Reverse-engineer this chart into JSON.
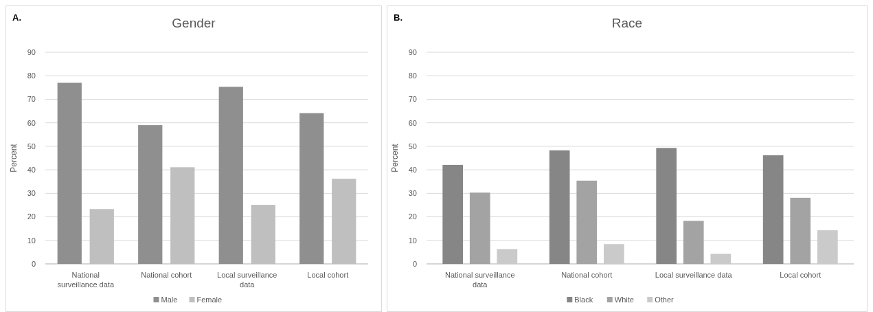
{
  "chart_data": [
    {
      "type": "bar",
      "title": "Gender",
      "ylabel": "Percent",
      "annotations": [
        "A."
      ],
      "categories": [
        "National surveillance data",
        "National cohort",
        "Local surveillance data",
        "Local cohort"
      ],
      "series": [
        {
          "name": "Male",
          "color": "#8f8f8f",
          "values": [
            77,
            59,
            75.3,
            64.1
          ]
        },
        {
          "name": "Female",
          "color": "#bfbfbf",
          "values": [
            23.3,
            41.1,
            25.1,
            36.2
          ]
        }
      ],
      "ylim": [
        0,
        90
      ],
      "yticks": [
        0,
        10,
        20,
        30,
        40,
        50,
        60,
        70,
        80,
        90
      ],
      "grid": "y",
      "legend": "bottom"
    },
    {
      "type": "bar",
      "title": "Race",
      "ylabel": "Percent",
      "annotations": [
        "B."
      ],
      "categories": [
        "National surveillance data",
        "National cohort",
        "Local surveillance data",
        "Local cohort"
      ],
      "series": [
        {
          "name": "Black",
          "color": "#868686",
          "values": [
            42.1,
            48.3,
            49.3,
            46.2
          ]
        },
        {
          "name": "White",
          "color": "#a3a3a3",
          "values": [
            30.3,
            35.4,
            18.3,
            28.1
          ]
        },
        {
          "name": "Other",
          "color": "#cacaca",
          "values": [
            6.3,
            8.4,
            4.3,
            14.3
          ]
        }
      ],
      "ylim": [
        0,
        90
      ],
      "yticks": [
        0,
        10,
        20,
        30,
        40,
        50,
        60,
        70,
        80,
        90
      ],
      "grid": "y",
      "legend": "bottom"
    }
  ]
}
